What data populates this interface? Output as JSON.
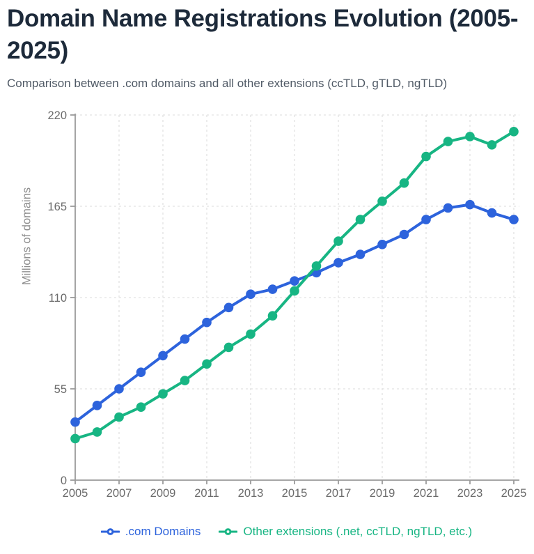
{
  "header": {
    "title": "Domain Name Registrations Evolution (2005-2025)",
    "subtitle": "Comparison between .com domains and all other extensions (ccTLD, gTLD, ngTLD)"
  },
  "chart_data": {
    "type": "line",
    "ylabel": "Millions of domains",
    "ylim": [
      0,
      220
    ],
    "y_ticks": [
      0,
      55,
      110,
      165,
      220
    ],
    "x_ticks": [
      2005,
      2007,
      2009,
      2011,
      2013,
      2015,
      2017,
      2019,
      2021,
      2023,
      2025
    ],
    "x": [
      2005,
      2006,
      2007,
      2008,
      2009,
      2010,
      2011,
      2012,
      2013,
      2014,
      2015,
      2016,
      2017,
      2018,
      2019,
      2020,
      2021,
      2022,
      2023,
      2024,
      2025
    ],
    "grid": true,
    "legend_position": "bottom",
    "series": [
      {
        "name": ".com Domains",
        "color": "#2d63dc",
        "values": [
          35,
          45,
          55,
          65,
          75,
          85,
          95,
          104,
          112,
          115,
          120,
          125,
          131,
          136,
          142,
          148,
          157,
          164,
          166,
          161,
          157
        ]
      },
      {
        "name": "Other extensions (.net, ccTLD, ngTLD, etc.)",
        "color": "#17b583",
        "values": [
          25,
          29,
          38,
          44,
          52,
          60,
          70,
          80,
          88,
          99,
          114,
          129,
          144,
          157,
          168,
          179,
          195,
          204,
          207,
          202,
          210
        ]
      }
    ],
    "grid_color": "#e2e2e2",
    "axis_color": "#9a9a9a",
    "tick_label_color": "#6b6b6b"
  }
}
